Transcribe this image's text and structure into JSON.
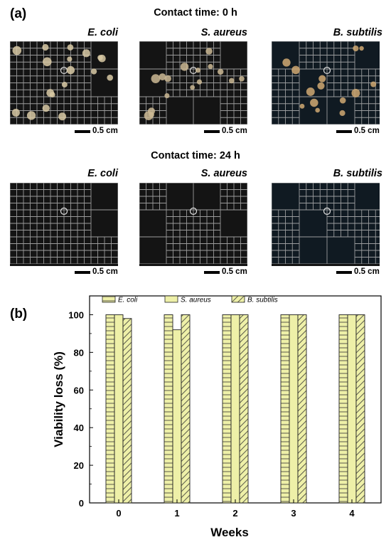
{
  "panel_a": {
    "label": "(a)",
    "rows": [
      {
        "heading": "Contact time: 0 h",
        "species": [
          "E. coli",
          "S. aureus",
          "B. subtilis"
        ],
        "scale": [
          "0.5 cm",
          "0.5 cm",
          "0.5 cm"
        ]
      },
      {
        "heading": "Contact time: 24 h",
        "species": [
          "E. coli",
          "S. aureus",
          "B. subtilis"
        ],
        "scale": [
          "0.5 cm",
          "0.5 cm",
          "0.5 cm"
        ]
      }
    ]
  },
  "panel_b": {
    "label": "(b)"
  },
  "chart_data": {
    "type": "bar",
    "categories": [
      "0",
      "1",
      "2",
      "3",
      "4"
    ],
    "series": [
      {
        "name": "E. coli",
        "values": [
          100,
          100,
          100,
          100,
          100
        ],
        "pattern": "horizontal-lines"
      },
      {
        "name": "S. aureus",
        "values": [
          100,
          92,
          100,
          100,
          100
        ],
        "pattern": "plain"
      },
      {
        "name": "B. subtilis",
        "values": [
          98,
          100,
          100,
          100,
          100
        ],
        "pattern": "diagonal-lines"
      }
    ],
    "xlabel": "Weeks",
    "ylabel": "Viability loss (%)",
    "ylim": [
      0,
      110
    ],
    "yticks": [
      "0",
      "20",
      "40",
      "60",
      "80",
      "100"
    ],
    "legend": "top",
    "grid": false,
    "bar_color": "#eef0a8"
  }
}
